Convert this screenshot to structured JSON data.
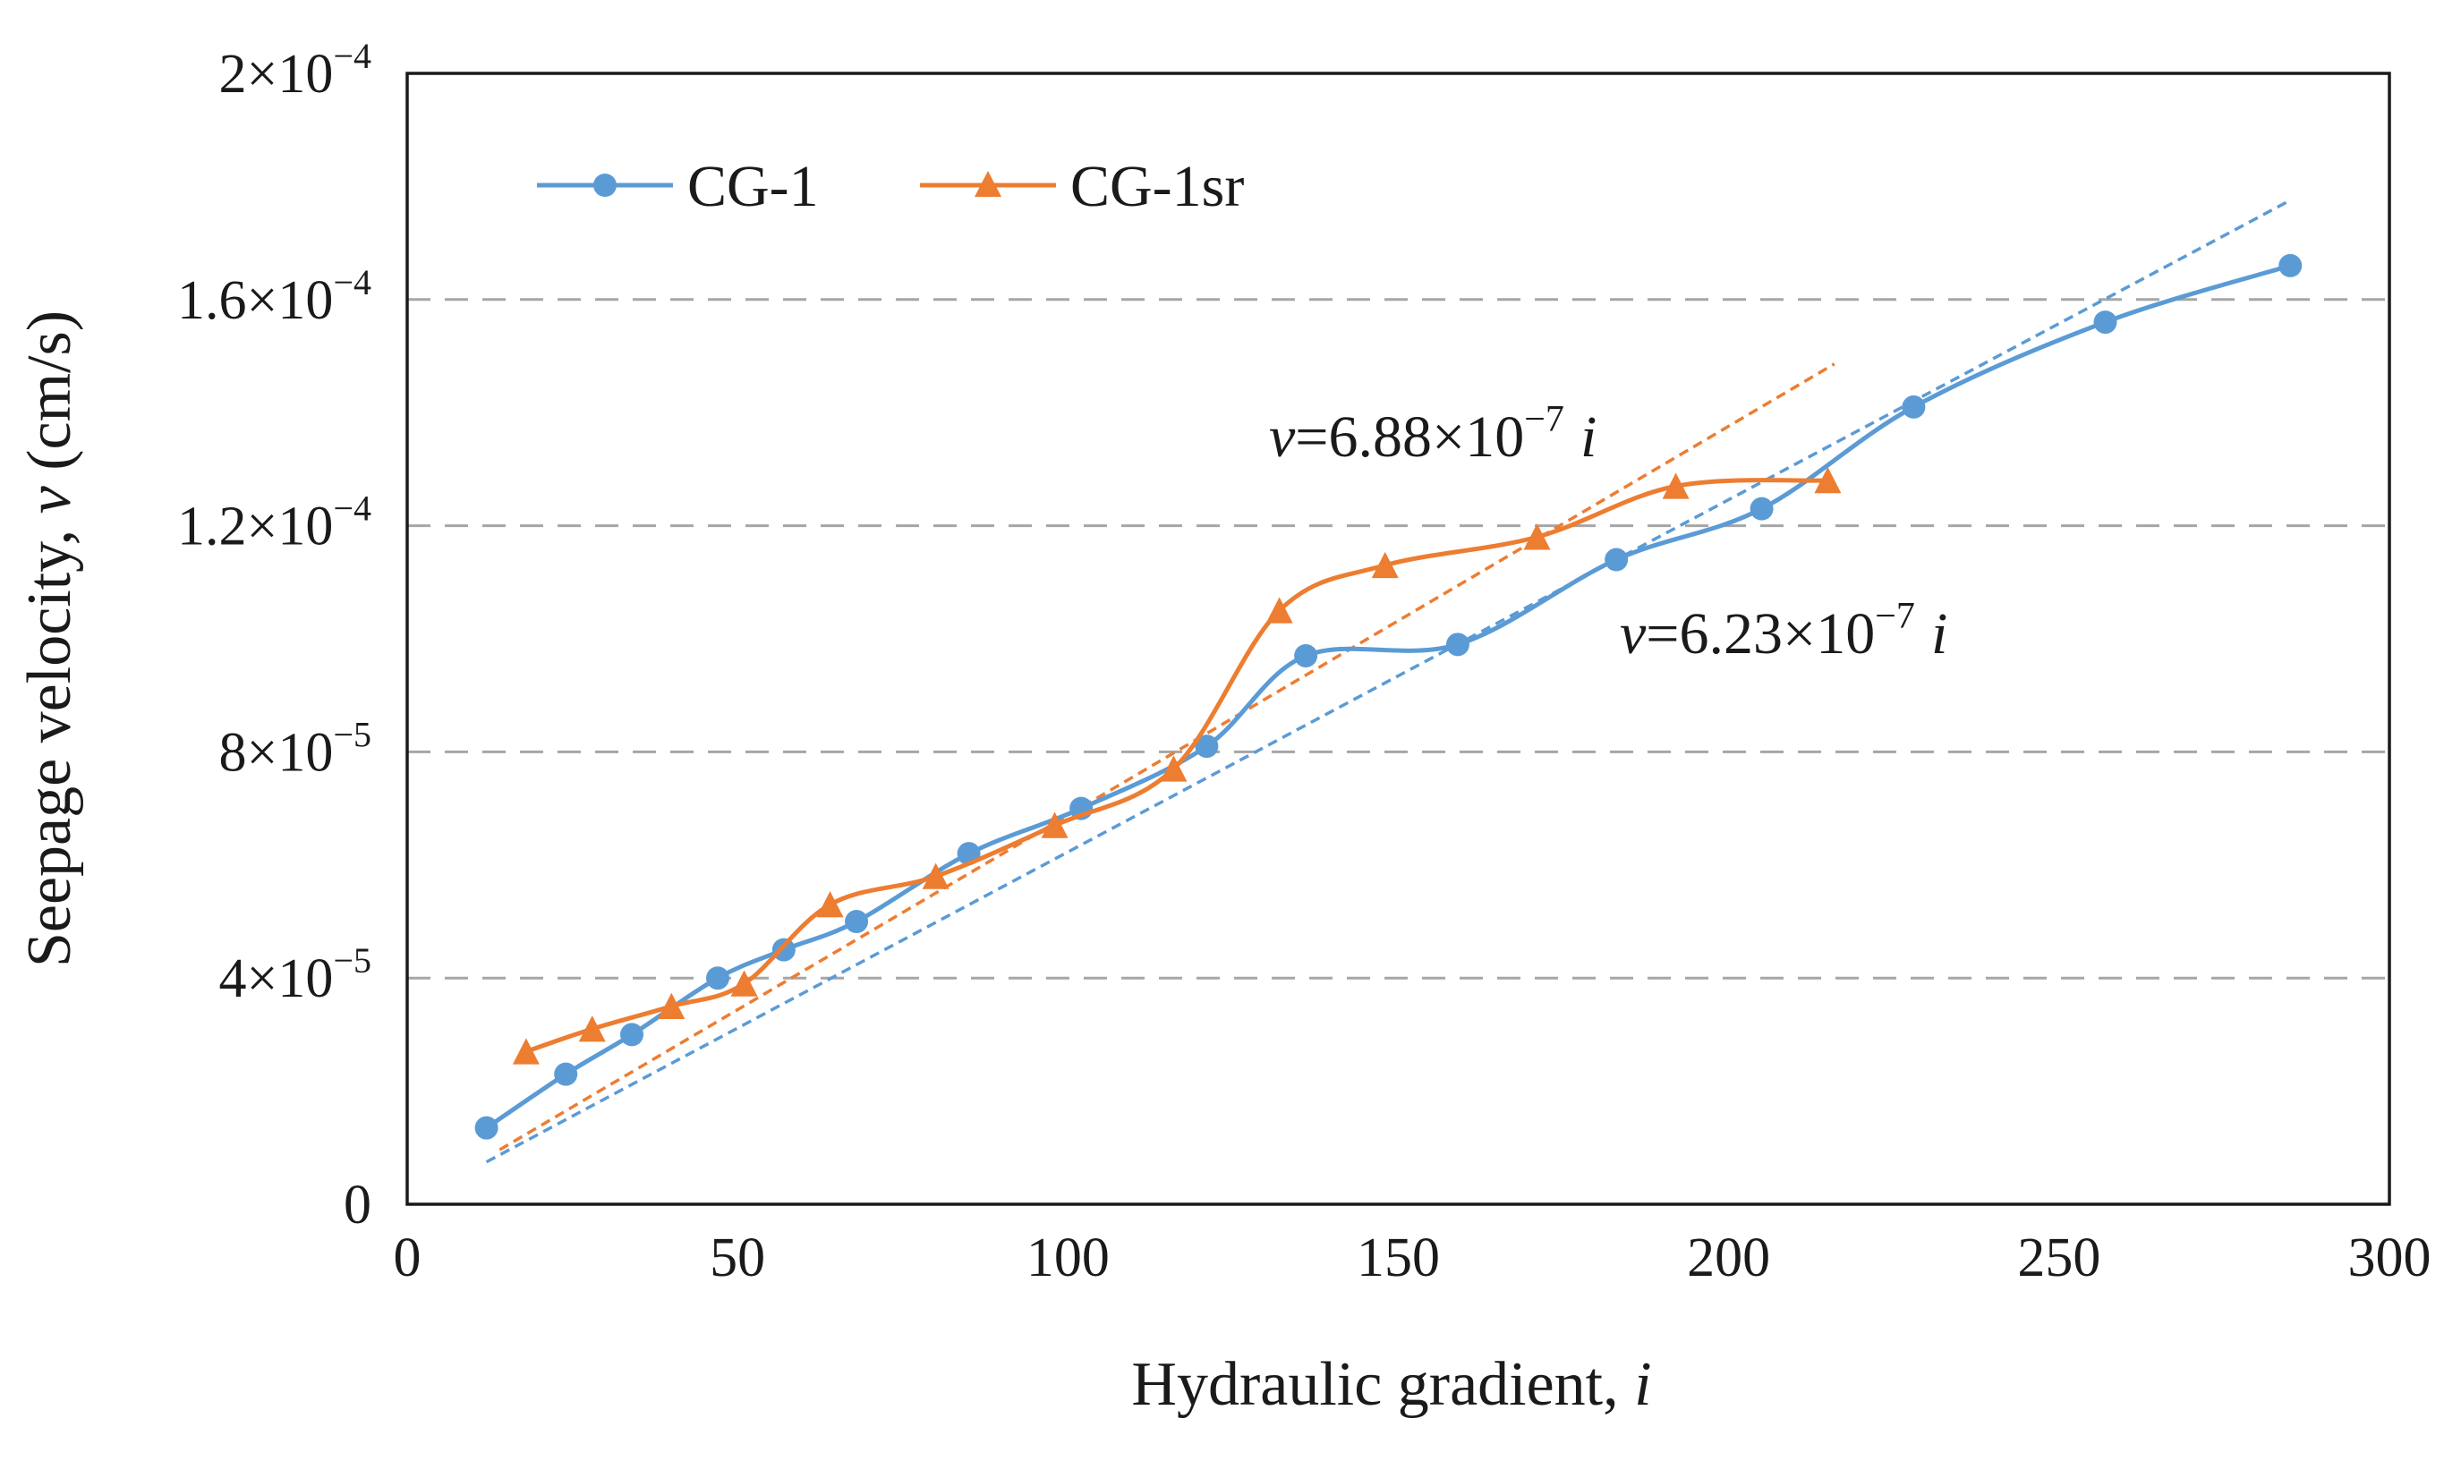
{
  "chart_data": {
    "type": "line",
    "title": "",
    "xlabel": "Hydraulic gradient, ",
    "xlabel_var": "i",
    "ylabel": "Seepage velocity, ",
    "ylabel_var": "v",
    "ylabel_unit": " (cm/s)",
    "xlim": [
      0,
      300
    ],
    "ylim": [
      0,
      0.0002
    ],
    "x_ticks": [
      0,
      50,
      100,
      150,
      200,
      250,
      300
    ],
    "x_tick_labels": [
      "0",
      "50",
      "100",
      "150",
      "200",
      "250",
      "300"
    ],
    "y_ticks": [
      {
        "value": 0,
        "mant": "0",
        "exp": ""
      },
      {
        "value": 4e-05,
        "mant": "4×10",
        "exp": "−5"
      },
      {
        "value": 8e-05,
        "mant": "8×10",
        "exp": "−5"
      },
      {
        "value": 0.00012,
        "mant": "1.2×10",
        "exp": "−4"
      },
      {
        "value": 0.00016,
        "mant": "1.6×10",
        "exp": "−4"
      },
      {
        "value": 0.0002,
        "mant": "2×10",
        "exp": "−4"
      }
    ],
    "grid": {
      "y": true,
      "style": "dashed"
    },
    "legend_position": "top-left",
    "series": [
      {
        "name": "CG-1",
        "marker": "circle",
        "color": "#5b9bd5",
        "x": [
          12,
          24,
          34,
          47,
          57,
          68,
          85,
          102,
          121,
          136,
          159,
          183,
          205,
          228,
          257,
          285
        ],
        "y": [
          1.35e-05,
          2.3e-05,
          3e-05,
          4e-05,
          4.5e-05,
          5e-05,
          6.2e-05,
          7e-05,
          8.1e-05,
          9.7e-05,
          9.9e-05,
          0.000114,
          0.000123,
          0.000141,
          0.000156,
          0.000166
        ]
      },
      {
        "name": "CG-1sr",
        "marker": "triangle",
        "color": "#ed7d31",
        "x": [
          18,
          28,
          40,
          51,
          64,
          80,
          98,
          116,
          132,
          148,
          171,
          192,
          215
        ],
        "y": [
          2.7e-05,
          3.1e-05,
          3.5e-05,
          3.9e-05,
          5.3e-05,
          5.8e-05,
          6.7e-05,
          7.7e-05,
          0.000105,
          0.000113,
          0.000118,
          0.000127,
          0.000128
        ]
      }
    ],
    "fits": [
      {
        "series": "CG-1",
        "slope": 6.23e-07,
        "x": [
          12,
          285
        ],
        "color": "#5b9bd5",
        "label_var": "v",
        "label_text": "=6.23×10",
        "label_exp": "−7",
        "label_tail_var": "i"
      },
      {
        "series": "CG-1sr",
        "slope": 6.88e-07,
        "x": [
          14,
          216
        ],
        "color": "#ed7d31",
        "label_var": "v",
        "label_text": "=6.88×10",
        "label_exp": "−7",
        "label_tail_var": "i"
      }
    ]
  }
}
